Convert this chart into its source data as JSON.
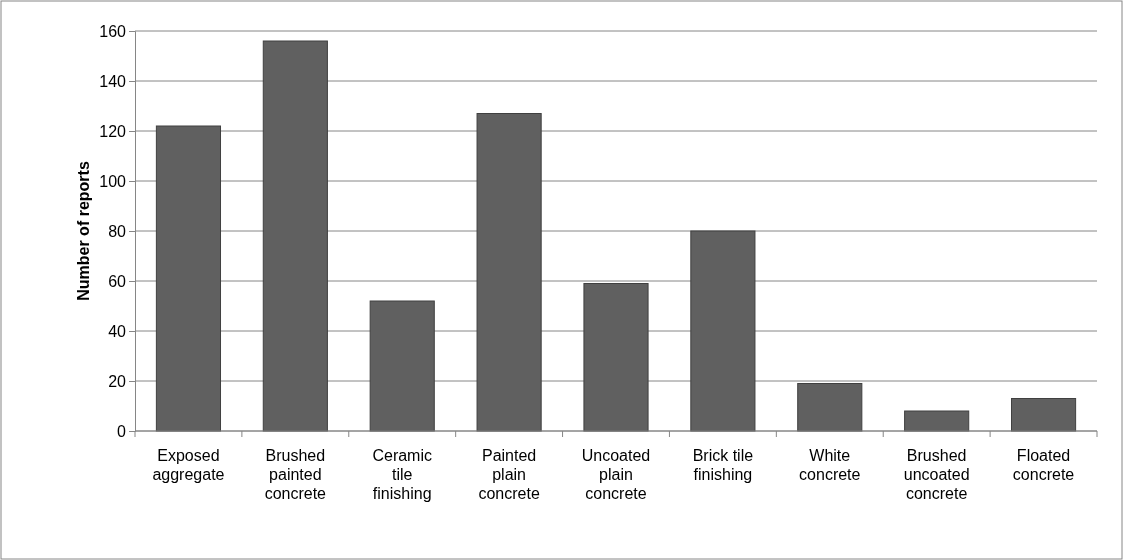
{
  "chart_data": {
    "type": "bar",
    "ylabel": "Number of reports",
    "categories": [
      "Exposed aggregate",
      "Brushed painted concrete",
      "Ceramic tile finishing",
      "Painted plain concrete",
      "Uncoated plain concrete",
      "Brick tile finishing",
      "White concrete",
      "Brushed uncoated concrete",
      "Floated concrete"
    ],
    "values": [
      122,
      156,
      52,
      127,
      59,
      80,
      19,
      8,
      13
    ],
    "color": "#606060",
    "ylim": [
      0,
      160
    ],
    "yticks": [
      0,
      20,
      40,
      60,
      80,
      100,
      120,
      140,
      160
    ],
    "grid": "y"
  }
}
